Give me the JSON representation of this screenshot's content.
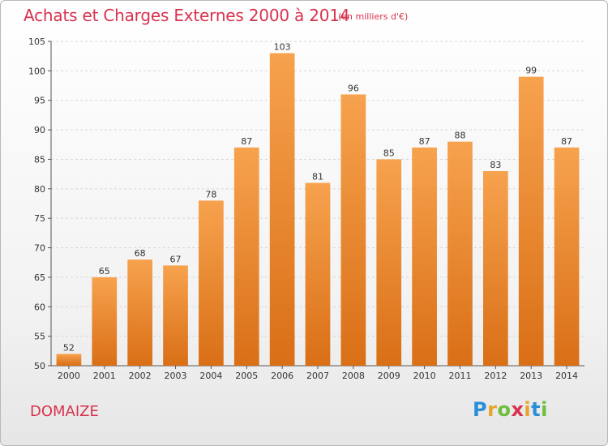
{
  "chart_data": {
    "type": "bar",
    "title": "Achats et Charges Externes 2000 à 2014",
    "subtitle": "(en milliers d'€)",
    "categories": [
      "2000",
      "2001",
      "2002",
      "2003",
      "2004",
      "2005",
      "2006",
      "2007",
      "2008",
      "2009",
      "2010",
      "2011",
      "2012",
      "2013",
      "2014"
    ],
    "values": [
      52,
      65,
      68,
      67,
      78,
      87,
      103,
      81,
      96,
      85,
      87,
      88,
      83,
      99,
      87
    ],
    "ylim": [
      50,
      105
    ],
    "yticks": [
      50,
      55,
      60,
      65,
      70,
      75,
      80,
      85,
      90,
      95,
      100,
      105
    ],
    "xlabel": "",
    "ylabel": "",
    "grid": true,
    "bar_color_top": "#f7a24e",
    "bar_color_bottom": "#d96f16"
  },
  "place_label": "DOMAIZE",
  "logo": {
    "letters": [
      "P",
      "r",
      "o",
      "x",
      "i",
      "t",
      "i"
    ],
    "colors": [
      "#2a8fd8",
      "#e8a32a",
      "#6cbf3c",
      "#d8324e",
      "#e8a32a",
      "#2a8fd8",
      "#6cbf3c"
    ]
  }
}
